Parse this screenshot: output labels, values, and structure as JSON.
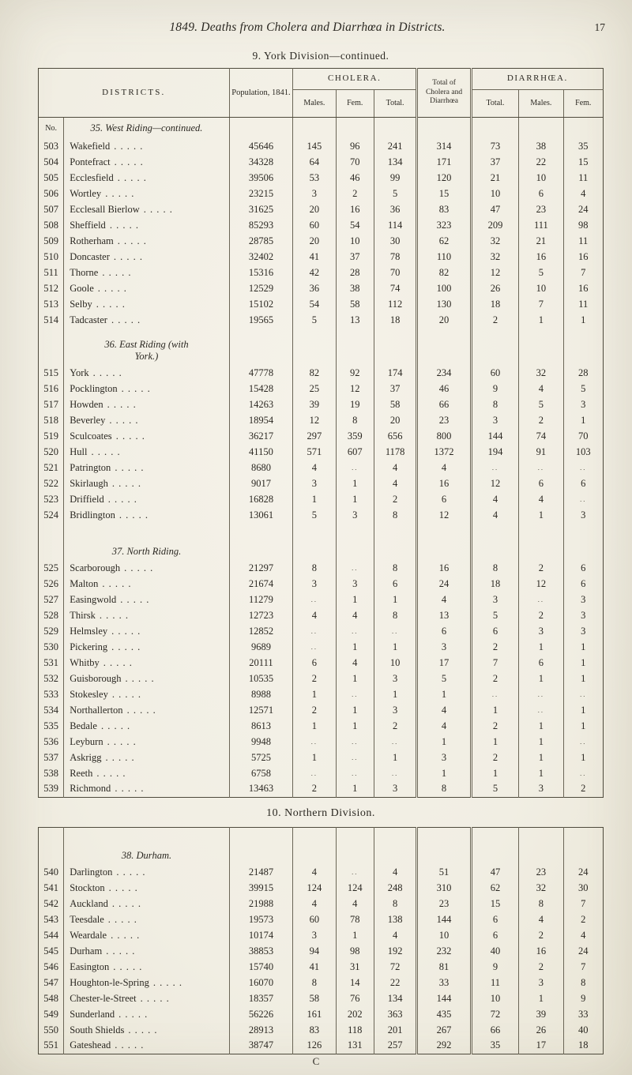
{
  "page": {
    "header": "1849. Deaths from Cholera and Diarrhœa in Districts.",
    "page_number": "17",
    "division_title": "9. York Division—continued.",
    "division2_title": "10. Northern Division.",
    "signature_mark": "C"
  },
  "ui": {
    "leader": ".  .  .  .  .",
    "empty_cell": ".."
  },
  "table": {
    "headers": {
      "no": "No.",
      "districts": "DISTRICTS.",
      "population": "Population, 1841.",
      "cholera": "CHOLERA.",
      "males": "Males.",
      "fem": "Fem.",
      "total": "Total.",
      "total_cd": "Total of Cholera and Diarrhœa",
      "diarrhoea": "DIARRHŒA.",
      "d_total": "Total.",
      "d_males": "Males.",
      "d_fem": "Fem."
    },
    "sections": [
      {
        "heading": "35. West Riding—continued.",
        "show_no_label": true,
        "spaced": false,
        "rows": [
          [
            "503",
            "Wakefield",
            "45646",
            "145",
            "96",
            "241",
            "314",
            "73",
            "38",
            "35"
          ],
          [
            "504",
            "Pontefract",
            "34328",
            "64",
            "70",
            "134",
            "171",
            "37",
            "22",
            "15"
          ],
          [
            "505",
            "Ecclesfield",
            "39506",
            "53",
            "46",
            "99",
            "120",
            "21",
            "10",
            "11"
          ],
          [
            "506",
            "Wortley",
            "23215",
            "3",
            "2",
            "5",
            "15",
            "10",
            "6",
            "4"
          ],
          [
            "507",
            "Ecclesall Bierlow",
            "31625",
            "20",
            "16",
            "36",
            "83",
            "47",
            "23",
            "24"
          ],
          [
            "508",
            "Sheffield",
            "85293",
            "60",
            "54",
            "114",
            "323",
            "209",
            "111",
            "98"
          ],
          [
            "509",
            "Rotherham",
            "28785",
            "20",
            "10",
            "30",
            "62",
            "32",
            "21",
            "11"
          ],
          [
            "510",
            "Doncaster",
            "32402",
            "41",
            "37",
            "78",
            "110",
            "32",
            "16",
            "16"
          ],
          [
            "511",
            "Thorne",
            "15316",
            "42",
            "28",
            "70",
            "82",
            "12",
            "5",
            "7"
          ],
          [
            "512",
            "Goole",
            "12529",
            "36",
            "38",
            "74",
            "100",
            "26",
            "10",
            "16"
          ],
          [
            "513",
            "Selby",
            "15102",
            "54",
            "58",
            "112",
            "130",
            "18",
            "7",
            "11"
          ],
          [
            "514",
            "Tadcaster",
            "19565",
            "5",
            "13",
            "18",
            "20",
            "2",
            "1",
            "1"
          ]
        ]
      },
      {
        "heading": "36. East Riding (with\nYork.)",
        "show_no_label": false,
        "spaced": true,
        "rows": [
          [
            "515",
            "York",
            "47778",
            "82",
            "92",
            "174",
            "234",
            "60",
            "32",
            "28"
          ],
          [
            "516",
            "Pocklington",
            "15428",
            "25",
            "12",
            "37",
            "46",
            "9",
            "4",
            "5"
          ],
          [
            "517",
            "Howden",
            "14263",
            "39",
            "19",
            "58",
            "66",
            "8",
            "5",
            "3"
          ],
          [
            "518",
            "Beverley",
            "18954",
            "12",
            "8",
            "20",
            "23",
            "3",
            "2",
            "1"
          ],
          [
            "519",
            "Sculcoates",
            "36217",
            "297",
            "359",
            "656",
            "800",
            "144",
            "74",
            "70"
          ],
          [
            "520",
            "Hull",
            "41150",
            "571",
            "607",
            "1178",
            "1372",
            "194",
            "91",
            "103"
          ],
          [
            "521",
            "Patrington",
            "8680",
            "4",
            "..",
            "4",
            "4",
            "..",
            "..",
            ".."
          ],
          [
            "522",
            "Skirlaugh",
            "9017",
            "3",
            "1",
            "4",
            "16",
            "12",
            "6",
            "6"
          ],
          [
            "523",
            "Driffield",
            "16828",
            "1",
            "1",
            "2",
            "6",
            "4",
            "4",
            ".."
          ],
          [
            "524",
            "Bridlington",
            "13061",
            "5",
            "3",
            "8",
            "12",
            "4",
            "1",
            "3"
          ]
        ]
      },
      {
        "heading": "37. North Riding.",
        "show_no_label": false,
        "spaced": true,
        "rows": [
          [
            "525",
            "Scarborough",
            "21297",
            "8",
            "..",
            "8",
            "16",
            "8",
            "2",
            "6"
          ],
          [
            "526",
            "Malton",
            "21674",
            "3",
            "3",
            "6",
            "24",
            "18",
            "12",
            "6"
          ],
          [
            "527",
            "Easingwold",
            "11279",
            "..",
            "1",
            "1",
            "4",
            "3",
            "..",
            "3"
          ],
          [
            "528",
            "Thirsk",
            "12723",
            "4",
            "4",
            "8",
            "13",
            "5",
            "2",
            "3"
          ],
          [
            "529",
            "Helmsley",
            "12852",
            "..",
            "..",
            "..",
            "6",
            "6",
            "3",
            "3"
          ],
          [
            "530",
            "Pickering",
            "9689",
            "..",
            "1",
            "1",
            "3",
            "2",
            "1",
            "1"
          ],
          [
            "531",
            "Whitby",
            "20111",
            "6",
            "4",
            "10",
            "17",
            "7",
            "6",
            "1"
          ],
          [
            "532",
            "Guisborough",
            "10535",
            "2",
            "1",
            "3",
            "5",
            "2",
            "1",
            "1"
          ],
          [
            "533",
            "Stokesley",
            "8988",
            "1",
            "..",
            "1",
            "1",
            "..",
            "..",
            ".."
          ],
          [
            "534",
            "Northallerton",
            "12571",
            "2",
            "1",
            "3",
            "4",
            "1",
            "..",
            "1"
          ],
          [
            "535",
            "Bedale",
            "8613",
            "1",
            "1",
            "2",
            "4",
            "2",
            "1",
            "1"
          ],
          [
            "536",
            "Leyburn",
            "9948",
            "..",
            "..",
            "..",
            "1",
            "1",
            "1",
            ".."
          ],
          [
            "537",
            "Askrigg",
            "5725",
            "1",
            "..",
            "1",
            "3",
            "2",
            "1",
            "1"
          ],
          [
            "538",
            "Reeth",
            "6758",
            "..",
            "..",
            "..",
            "1",
            "1",
            "1",
            ".."
          ],
          [
            "539",
            "Richmond",
            "13463",
            "2",
            "1",
            "3",
            "8",
            "5",
            "3",
            "2"
          ]
        ]
      }
    ],
    "sections2": [
      {
        "heading": "38. Durham.",
        "show_no_label": false,
        "spaced": true,
        "rows": [
          [
            "540",
            "Darlington",
            "21487",
            "4",
            "..",
            "4",
            "51",
            "47",
            "23",
            "24"
          ],
          [
            "541",
            "Stockton",
            "39915",
            "124",
            "124",
            "248",
            "310",
            "62",
            "32",
            "30"
          ],
          [
            "542",
            "Auckland",
            "21988",
            "4",
            "4",
            "8",
            "23",
            "15",
            "8",
            "7"
          ],
          [
            "543",
            "Teesdale",
            "19573",
            "60",
            "78",
            "138",
            "144",
            "6",
            "4",
            "2"
          ],
          [
            "544",
            "Weardale",
            "10174",
            "3",
            "1",
            "4",
            "10",
            "6",
            "2",
            "4"
          ],
          [
            "545",
            "Durham",
            "38853",
            "94",
            "98",
            "192",
            "232",
            "40",
            "16",
            "24"
          ],
          [
            "546",
            "Easington",
            "15740",
            "41",
            "31",
            "72",
            "81",
            "9",
            "2",
            "7"
          ],
          [
            "547",
            "Houghton-le-Spring",
            "16070",
            "8",
            "14",
            "22",
            "33",
            "11",
            "3",
            "8"
          ],
          [
            "548",
            "Chester-le-Street",
            "18357",
            "58",
            "76",
            "134",
            "144",
            "10",
            "1",
            "9"
          ],
          [
            "549",
            "Sunderland",
            "56226",
            "161",
            "202",
            "363",
            "435",
            "72",
            "39",
            "33"
          ],
          [
            "550",
            "South Shields",
            "28913",
            "83",
            "118",
            "201",
            "267",
            "66",
            "26",
            "40"
          ],
          [
            "551",
            "Gateshead",
            "38747",
            "126",
            "131",
            "257",
            "292",
            "35",
            "17",
            "18"
          ]
        ]
      }
    ]
  }
}
